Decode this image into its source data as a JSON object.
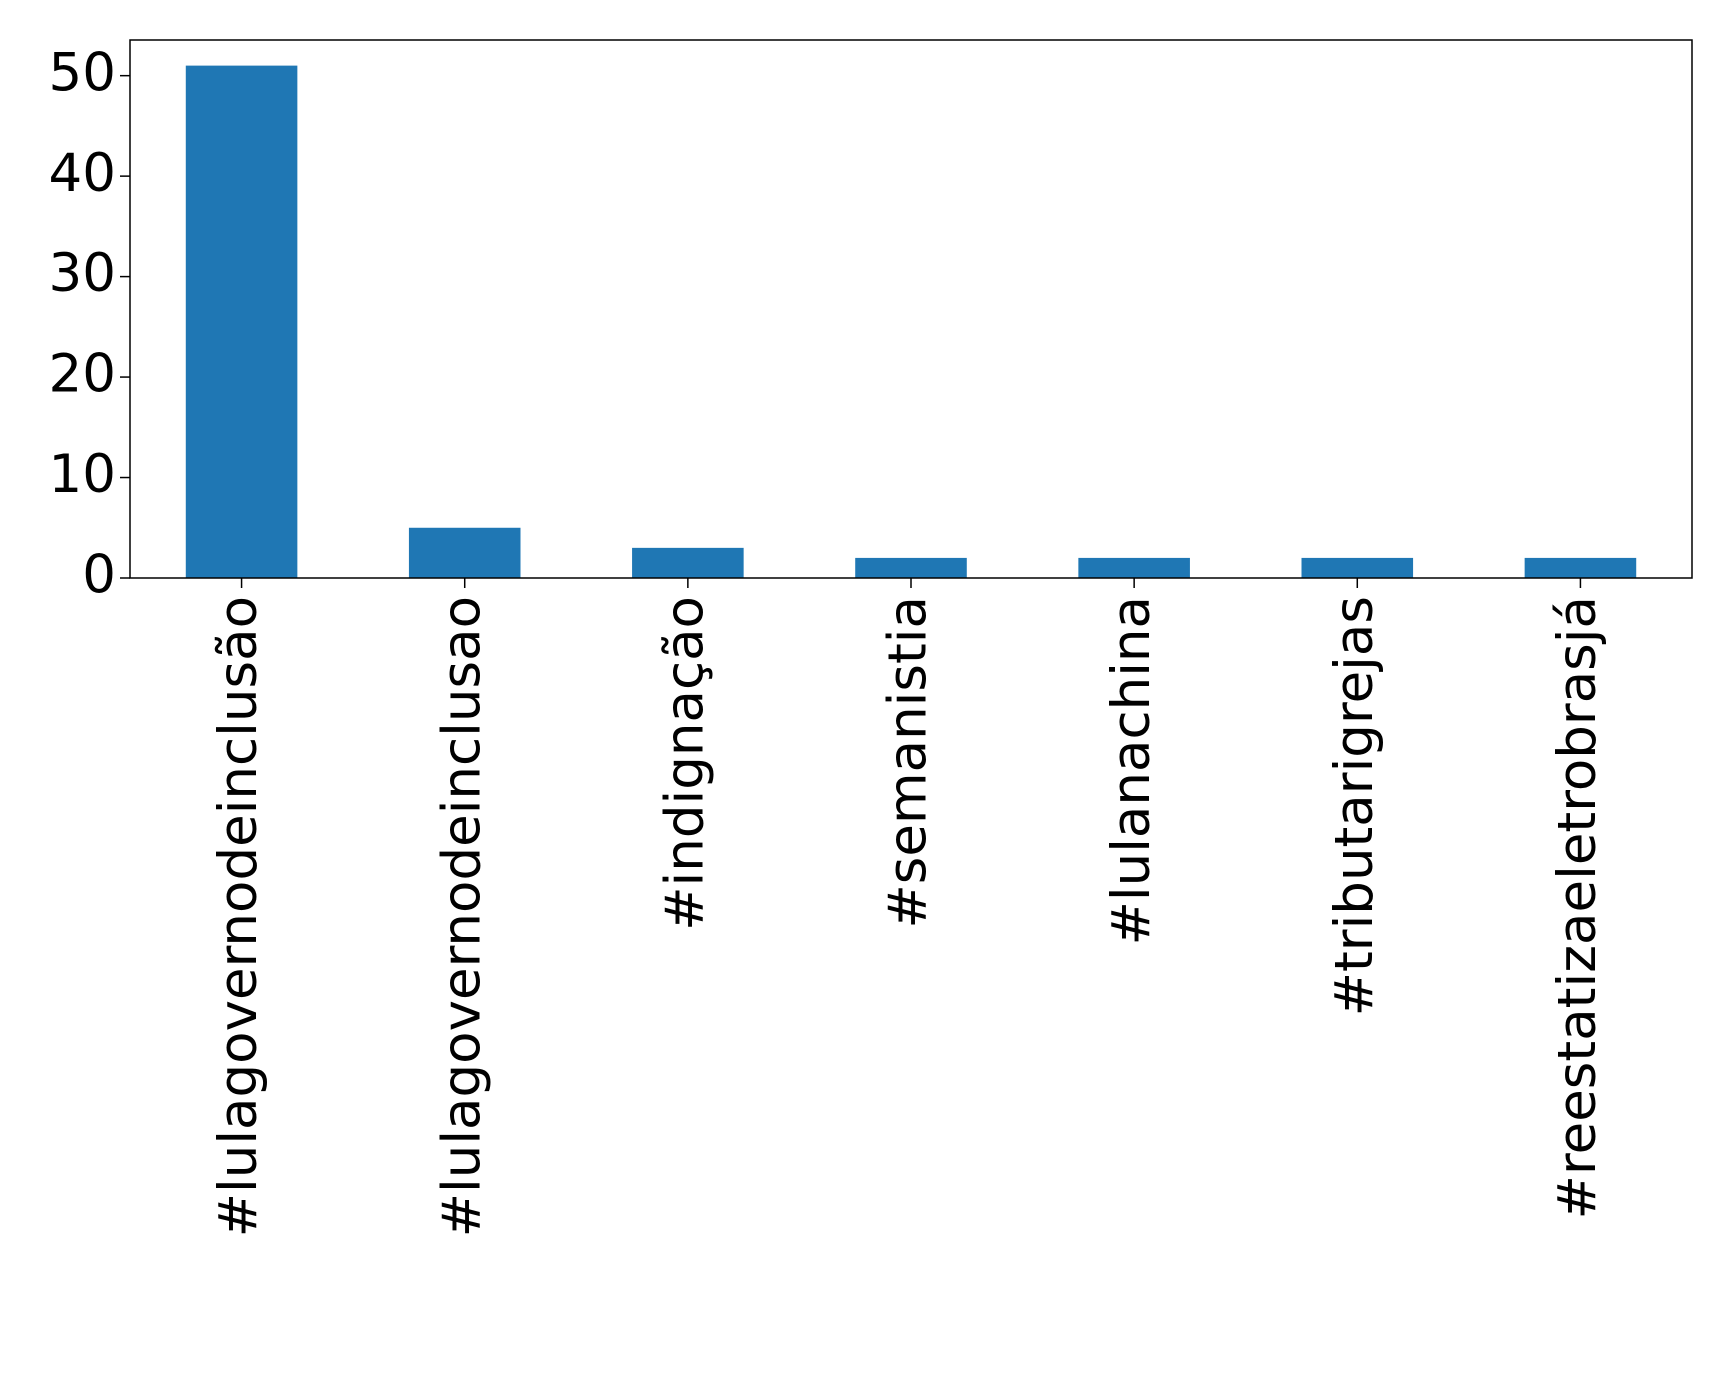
{
  "chart_data": {
    "type": "bar",
    "categories": [
      "#lulagovernodeinclusão",
      "#lulagovernodeinclusao",
      "#indignação",
      "#semanistia",
      "#lulanachina",
      "#tributarigrejas",
      "#reestatizaeletrobrasjá"
    ],
    "values": [
      51,
      5,
      3,
      2,
      2,
      2,
      2
    ],
    "color": "#1f77b4",
    "ylim": [
      0,
      53.55
    ],
    "yticks": [
      0,
      10,
      20,
      30,
      40,
      50
    ],
    "grid": false
  }
}
